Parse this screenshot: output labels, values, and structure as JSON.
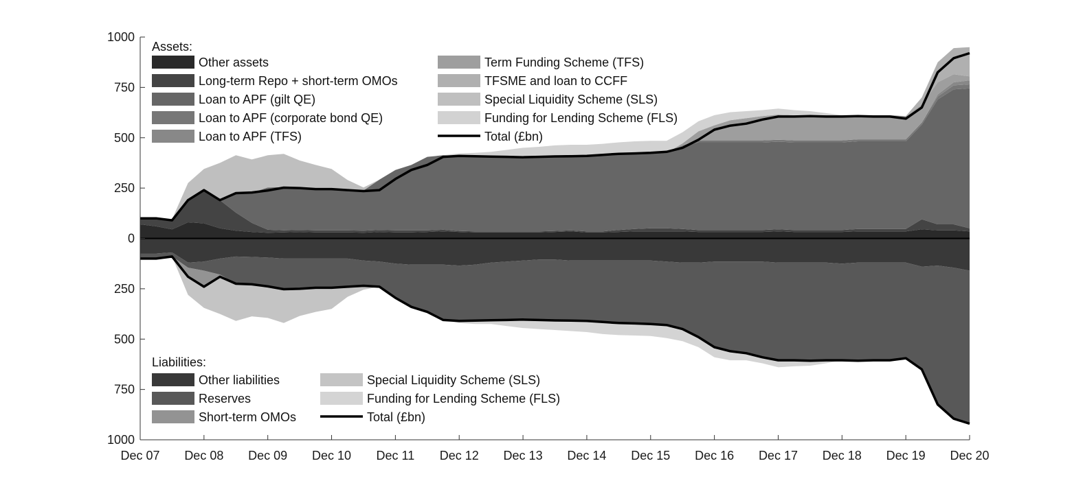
{
  "chart_data": {
    "type": "area",
    "x": [
      "Dec 07",
      "Mar 08",
      "Jun 08",
      "Sep 08",
      "Dec 08",
      "Mar 09",
      "Jun 09",
      "Sep 09",
      "Dec 09",
      "Mar 10",
      "Jun 10",
      "Sep 10",
      "Dec 10",
      "Mar 11",
      "Jun 11",
      "Sep 11",
      "Dec 11",
      "Mar 12",
      "Jun 12",
      "Sep 12",
      "Dec 12",
      "Mar 13",
      "Jun 13",
      "Sep 13",
      "Dec 13",
      "Mar 14",
      "Jun 14",
      "Sep 14",
      "Dec 14",
      "Mar 15",
      "Jun 15",
      "Sep 15",
      "Dec 15",
      "Mar 16",
      "Jun 16",
      "Sep 16",
      "Dec 16",
      "Mar 17",
      "Jun 17",
      "Sep 17",
      "Dec 17",
      "Mar 18",
      "Jun 18",
      "Sep 18",
      "Dec 18",
      "Mar 19",
      "Jun 19",
      "Sep 19",
      "Dec 19",
      "Mar 20",
      "Jun 20",
      "Sep 20",
      "Dec 20"
    ],
    "x_ticks": [
      "Dec 07",
      "Dec 08",
      "Dec 09",
      "Dec 10",
      "Dec 11",
      "Dec 12",
      "Dec 13",
      "Dec 14",
      "Dec 15",
      "Dec 16",
      "Dec 17",
      "Dec 18",
      "Dec 19",
      "Dec 20"
    ],
    "ylim": [
      -1000,
      1000
    ],
    "y_ticks": [
      1000,
      750,
      500,
      250,
      0,
      250,
      500,
      750,
      1000
    ],
    "y_tick_values": [
      1000,
      750,
      500,
      250,
      0,
      -250,
      -500,
      -750,
      -1000
    ],
    "assets_title": "Assets:",
    "assets": [
      {
        "name": "Other assets",
        "color": "#2a2a2a",
        "values": [
          70,
          60,
          45,
          80,
          75,
          50,
          38,
          32,
          28,
          30,
          32,
          30,
          30,
          30,
          28,
          32,
          30,
          30,
          32,
          35,
          32,
          30,
          30,
          30,
          30,
          30,
          32,
          35,
          30,
          30,
          32,
          35,
          35,
          35,
          35,
          32,
          32,
          32,
          32,
          32,
          35,
          32,
          32,
          32,
          32,
          35,
          35,
          35,
          35,
          45,
          40,
          40,
          35
        ]
      },
      {
        "name": "Long-term Repo + short-term OMOs",
        "color": "#444444",
        "values": [
          35,
          40,
          50,
          110,
          165,
          140,
          90,
          45,
          15,
          10,
          10,
          10,
          10,
          10,
          10,
          10,
          10,
          10,
          8,
          8,
          5,
          5,
          5,
          5,
          5,
          5,
          5,
          5,
          5,
          5,
          10,
          12,
          15,
          15,
          12,
          10,
          10,
          10,
          10,
          10,
          10,
          10,
          10,
          10,
          10,
          12,
          12,
          12,
          12,
          50,
          30,
          30,
          15
        ]
      },
      {
        "name": "Loan to APF (gilt QE)",
        "color": "#666666",
        "values": [
          0,
          0,
          0,
          0,
          0,
          0,
          100,
          150,
          210,
          215,
          205,
          210,
          205,
          200,
          200,
          250,
          300,
          325,
          365,
          370,
          375,
          375,
          375,
          375,
          375,
          375,
          375,
          375,
          375,
          375,
          375,
          375,
          375,
          375,
          410,
          435,
          435,
          435,
          435,
          435,
          435,
          435,
          435,
          435,
          435,
          435,
          435,
          435,
          435,
          470,
          620,
          670,
          695
        ]
      },
      {
        "name": "Loan to APF (corporate bond QE)",
        "color": "#777777",
        "values": [
          0,
          0,
          0,
          0,
          0,
          0,
          0,
          0,
          0,
          0,
          0,
          0,
          0,
          0,
          0,
          0,
          0,
          0,
          0,
          0,
          0,
          0,
          0,
          0,
          0,
          0,
          0,
          0,
          0,
          0,
          0,
          0,
          0,
          0,
          5,
          10,
          10,
          10,
          10,
          10,
          10,
          10,
          10,
          10,
          10,
          10,
          10,
          10,
          10,
          10,
          15,
          20,
          20
        ]
      },
      {
        "name": "Loan to APF (TFS)",
        "color": "#888888",
        "values": [
          0,
          0,
          0,
          0,
          0,
          0,
          0,
          0,
          0,
          0,
          0,
          0,
          0,
          0,
          0,
          0,
          0,
          0,
          0,
          0,
          0,
          0,
          0,
          0,
          0,
          0,
          0,
          0,
          0,
          0,
          0,
          0,
          0,
          0,
          0,
          0,
          0,
          0,
          0,
          0,
          0,
          0,
          0,
          0,
          0,
          0,
          0,
          0,
          0,
          0,
          10,
          15,
          20
        ]
      },
      {
        "name": "Term Funding Scheme (TFS)",
        "color": "#9e9e9e",
        "values": [
          0,
          0,
          0,
          0,
          0,
          0,
          0,
          0,
          0,
          0,
          0,
          0,
          0,
          0,
          0,
          0,
          0,
          0,
          0,
          0,
          0,
          0,
          0,
          0,
          0,
          0,
          0,
          0,
          0,
          0,
          0,
          0,
          0,
          0,
          10,
          45,
          75,
          100,
          110,
          120,
          125,
          125,
          125,
          125,
          125,
          120,
          120,
          120,
          115,
          90,
          60,
          40,
          20
        ]
      },
      {
        "name": "TFSME and loan to CCFF",
        "color": "#b0b0b0",
        "values": [
          0,
          0,
          0,
          0,
          0,
          0,
          0,
          0,
          0,
          0,
          0,
          0,
          0,
          0,
          0,
          0,
          0,
          0,
          0,
          0,
          0,
          0,
          0,
          0,
          0,
          0,
          0,
          0,
          0,
          0,
          0,
          0,
          0,
          0,
          0,
          0,
          0,
          0,
          0,
          0,
          0,
          0,
          0,
          0,
          0,
          0,
          0,
          0,
          0,
          35,
          100,
          130,
          145
        ]
      },
      {
        "name": "Special Liquidity Scheme (SLS)",
        "color": "#bfbfbf",
        "values": [
          0,
          0,
          0,
          85,
          105,
          185,
          185,
          165,
          160,
          165,
          140,
          115,
          100,
          50,
          15,
          0,
          0,
          0,
          0,
          0,
          0,
          0,
          0,
          0,
          0,
          0,
          0,
          0,
          0,
          0,
          0,
          0,
          0,
          0,
          0,
          0,
          0,
          0,
          0,
          0,
          0,
          0,
          0,
          0,
          0,
          0,
          0,
          0,
          0,
          0,
          0,
          0,
          0
        ]
      },
      {
        "name": "Funding for Lending Scheme (FLS)",
        "color": "#d2d2d2",
        "values": [
          0,
          0,
          0,
          0,
          0,
          0,
          0,
          0,
          0,
          0,
          0,
          0,
          0,
          0,
          0,
          0,
          0,
          0,
          0,
          0,
          10,
          15,
          20,
          30,
          40,
          45,
          50,
          50,
          55,
          60,
          60,
          60,
          60,
          60,
          55,
          50,
          50,
          40,
          35,
          30,
          30,
          25,
          20,
          10,
          0,
          0,
          0,
          0,
          0,
          0,
          0,
          0,
          0
        ]
      }
    ],
    "assets_total": {
      "name": "Total (£bn)",
      "values": [
        100,
        100,
        90,
        190,
        240,
        190,
        225,
        228,
        238,
        252,
        250,
        245,
        245,
        240,
        235,
        240,
        295,
        340,
        365,
        405,
        410,
        408,
        406,
        405,
        403,
        405,
        407,
        408,
        410,
        415,
        420,
        422,
        425,
        430,
        450,
        490,
        540,
        560,
        570,
        590,
        605,
        605,
        607,
        605,
        605,
        607,
        605,
        605,
        595,
        650,
        825,
        895,
        920
      ]
    },
    "liabilities_title": "Liabilities:",
    "liabilities": [
      {
        "name": "Other liabilities",
        "color": "#393939",
        "values": [
          75,
          75,
          70,
          120,
          115,
          100,
          90,
          92,
          95,
          100,
          100,
          100,
          100,
          100,
          110,
          115,
          125,
          130,
          130,
          130,
          135,
          130,
          120,
          115,
          110,
          105,
          105,
          110,
          110,
          110,
          110,
          110,
          110,
          115,
          120,
          120,
          115,
          115,
          115,
          115,
          120,
          120,
          120,
          120,
          125,
          120,
          120,
          120,
          120,
          140,
          135,
          145,
          160
        ]
      },
      {
        "name": "Reserves",
        "color": "#585858",
        "values": [
          25,
          25,
          20,
          25,
          45,
          80,
          135,
          135,
          140,
          150,
          150,
          150,
          150,
          140,
          130,
          125,
          170,
          210,
          235,
          275,
          275,
          280,
          285,
          290,
          295,
          300,
          300,
          300,
          300,
          305,
          310,
          312,
          315,
          320,
          335,
          370,
          425,
          450,
          455,
          475,
          490,
          490,
          492,
          490,
          480,
          490,
          490,
          490,
          480,
          515,
          690,
          750,
          755
        ]
      },
      {
        "name": "Short-term OMOs",
        "color": "#939393",
        "values": [
          0,
          0,
          0,
          40,
          80,
          10,
          0,
          0,
          0,
          0,
          0,
          0,
          0,
          0,
          0,
          0,
          0,
          0,
          0,
          0,
          0,
          0,
          0,
          0,
          0,
          0,
          0,
          0,
          0,
          0,
          0,
          0,
          0,
          0,
          0,
          0,
          0,
          0,
          0,
          0,
          0,
          0,
          0,
          0,
          0,
          0,
          0,
          0,
          0,
          0,
          0,
          0,
          0
        ]
      },
      {
        "name": "Special Liquidity Scheme (SLS)",
        "color": "#c4c4c4",
        "values": [
          0,
          0,
          0,
          95,
          105,
          185,
          185,
          160,
          160,
          170,
          135,
          115,
          100,
          50,
          15,
          0,
          0,
          0,
          0,
          0,
          0,
          0,
          0,
          0,
          0,
          0,
          0,
          0,
          0,
          0,
          0,
          0,
          0,
          0,
          0,
          0,
          0,
          0,
          0,
          0,
          0,
          0,
          0,
          0,
          0,
          0,
          0,
          0,
          0,
          0,
          0,
          0,
          0
        ]
      },
      {
        "name": "Funding for Lending Scheme (FLS)",
        "color": "#d4d4d4",
        "values": [
          0,
          0,
          0,
          0,
          0,
          0,
          0,
          0,
          0,
          0,
          0,
          0,
          0,
          0,
          0,
          0,
          0,
          0,
          0,
          0,
          10,
          15,
          20,
          30,
          40,
          45,
          50,
          50,
          55,
          60,
          60,
          60,
          60,
          60,
          55,
          50,
          50,
          40,
          35,
          30,
          30,
          25,
          20,
          10,
          0,
          0,
          0,
          0,
          0,
          0,
          0,
          0,
          0
        ]
      }
    ],
    "liabilities_total": {
      "name": "Total (£bn)",
      "values": [
        100,
        100,
        90,
        190,
        240,
        190,
        225,
        228,
        238,
        252,
        250,
        245,
        245,
        240,
        235,
        240,
        295,
        340,
        365,
        405,
        410,
        408,
        406,
        405,
        403,
        405,
        407,
        408,
        410,
        415,
        420,
        422,
        425,
        430,
        450,
        490,
        540,
        560,
        570,
        590,
        605,
        605,
        607,
        605,
        605,
        607,
        605,
        605,
        595,
        650,
        825,
        895,
        920
      ]
    }
  }
}
